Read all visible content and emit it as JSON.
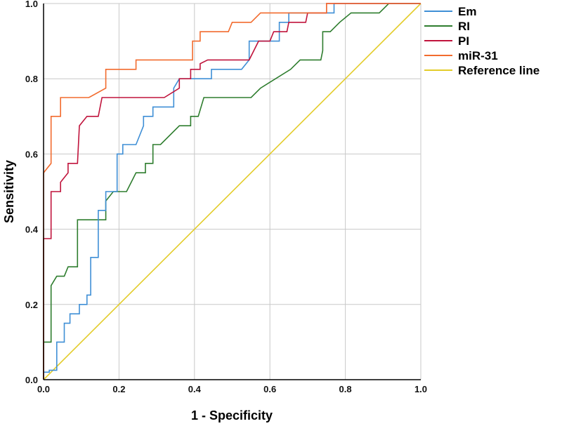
{
  "chart_data": {
    "type": "line",
    "title": "",
    "xlabel": "1 - Specificity",
    "ylabel": "Sensitivity",
    "xlim": [
      0,
      1
    ],
    "ylim": [
      0,
      1
    ],
    "grid": true,
    "legend_position": "top-right",
    "x_ticks": [
      "0.0",
      "0.2",
      "0.4",
      "0.6",
      "0.8",
      "1.0"
    ],
    "y_ticks": [
      "0.0",
      "0.2",
      "0.4",
      "0.6",
      "0.8",
      "1.0"
    ],
    "series": [
      {
        "name": "Em",
        "color": "#3f8fd6",
        "points": [
          [
            0,
            0
          ],
          [
            0,
            0.02
          ],
          [
            0.015,
            0.02
          ],
          [
            0.015,
            0.025
          ],
          [
            0.035,
            0.025
          ],
          [
            0.035,
            0.1
          ],
          [
            0.055,
            0.1
          ],
          [
            0.055,
            0.15
          ],
          [
            0.07,
            0.15
          ],
          [
            0.07,
            0.175
          ],
          [
            0.095,
            0.175
          ],
          [
            0.095,
            0.2
          ],
          [
            0.115,
            0.2
          ],
          [
            0.115,
            0.225
          ],
          [
            0.125,
            0.225
          ],
          [
            0.125,
            0.325
          ],
          [
            0.145,
            0.325
          ],
          [
            0.145,
            0.45
          ],
          [
            0.165,
            0.45
          ],
          [
            0.165,
            0.5
          ],
          [
            0.195,
            0.5
          ],
          [
            0.195,
            0.6
          ],
          [
            0.21,
            0.6
          ],
          [
            0.21,
            0.625
          ],
          [
            0.245,
            0.625
          ],
          [
            0.265,
            0.675
          ],
          [
            0.265,
            0.7
          ],
          [
            0.29,
            0.7
          ],
          [
            0.29,
            0.725
          ],
          [
            0.31,
            0.725
          ],
          [
            0.345,
            0.725
          ],
          [
            0.345,
            0.775
          ],
          [
            0.36,
            0.8
          ],
          [
            0.41,
            0.8
          ],
          [
            0.425,
            0.8
          ],
          [
            0.445,
            0.8
          ],
          [
            0.445,
            0.825
          ],
          [
            0.525,
            0.825
          ],
          [
            0.545,
            0.85
          ],
          [
            0.545,
            0.9
          ],
          [
            0.565,
            0.9
          ],
          [
            0.625,
            0.9
          ],
          [
            0.625,
            0.95
          ],
          [
            0.65,
            0.95
          ],
          [
            0.65,
            0.975
          ],
          [
            0.75,
            0.975
          ],
          [
            0.77,
            0.975
          ],
          [
            0.77,
            1.0
          ],
          [
            1.0,
            1.0
          ]
        ]
      },
      {
        "name": "RI",
        "color": "#2e7d2e",
        "points": [
          [
            0,
            0
          ],
          [
            0,
            0.1
          ],
          [
            0.02,
            0.1
          ],
          [
            0.02,
            0.25
          ],
          [
            0.035,
            0.275
          ],
          [
            0.055,
            0.275
          ],
          [
            0.065,
            0.3
          ],
          [
            0.09,
            0.3
          ],
          [
            0.09,
            0.425
          ],
          [
            0.15,
            0.425
          ],
          [
            0.165,
            0.425
          ],
          [
            0.165,
            0.475
          ],
          [
            0.185,
            0.5
          ],
          [
            0.22,
            0.5
          ],
          [
            0.245,
            0.55
          ],
          [
            0.27,
            0.55
          ],
          [
            0.27,
            0.575
          ],
          [
            0.29,
            0.575
          ],
          [
            0.29,
            0.625
          ],
          [
            0.31,
            0.625
          ],
          [
            0.36,
            0.675
          ],
          [
            0.39,
            0.675
          ],
          [
            0.39,
            0.7
          ],
          [
            0.41,
            0.7
          ],
          [
            0.425,
            0.75
          ],
          [
            0.55,
            0.75
          ],
          [
            0.575,
            0.775
          ],
          [
            0.655,
            0.825
          ],
          [
            0.68,
            0.85
          ],
          [
            0.735,
            0.85
          ],
          [
            0.74,
            0.875
          ],
          [
            0.74,
            0.925
          ],
          [
            0.76,
            0.925
          ],
          [
            0.785,
            0.95
          ],
          [
            0.815,
            0.975
          ],
          [
            0.89,
            0.975
          ],
          [
            0.915,
            1.0
          ],
          [
            1.0,
            1.0
          ]
        ]
      },
      {
        "name": "PI",
        "color": "#c0143c",
        "points": [
          [
            0,
            0
          ],
          [
            0,
            0.375
          ],
          [
            0.02,
            0.375
          ],
          [
            0.02,
            0.5
          ],
          [
            0.045,
            0.5
          ],
          [
            0.045,
            0.525
          ],
          [
            0.065,
            0.55
          ],
          [
            0.065,
            0.575
          ],
          [
            0.09,
            0.575
          ],
          [
            0.095,
            0.675
          ],
          [
            0.115,
            0.7
          ],
          [
            0.145,
            0.7
          ],
          [
            0.155,
            0.75
          ],
          [
            0.32,
            0.75
          ],
          [
            0.36,
            0.775
          ],
          [
            0.36,
            0.8
          ],
          [
            0.39,
            0.8
          ],
          [
            0.39,
            0.825
          ],
          [
            0.415,
            0.825
          ],
          [
            0.415,
            0.84
          ],
          [
            0.435,
            0.85
          ],
          [
            0.545,
            0.85
          ],
          [
            0.57,
            0.9
          ],
          [
            0.6,
            0.9
          ],
          [
            0.61,
            0.925
          ],
          [
            0.645,
            0.925
          ],
          [
            0.65,
            0.95
          ],
          [
            0.695,
            0.95
          ],
          [
            0.7,
            0.975
          ],
          [
            0.75,
            0.975
          ],
          [
            0.75,
            1.0
          ],
          [
            0.82,
            1.0
          ],
          [
            1.0,
            1.0
          ]
        ]
      },
      {
        "name": "miR-31",
        "color": "#f26b2e",
        "points": [
          [
            0,
            0
          ],
          [
            0,
            0.55
          ],
          [
            0.02,
            0.575
          ],
          [
            0.02,
            0.7
          ],
          [
            0.045,
            0.7
          ],
          [
            0.045,
            0.75
          ],
          [
            0.12,
            0.75
          ],
          [
            0.165,
            0.775
          ],
          [
            0.165,
            0.825
          ],
          [
            0.245,
            0.825
          ],
          [
            0.245,
            0.85
          ],
          [
            0.395,
            0.85
          ],
          [
            0.395,
            0.9
          ],
          [
            0.415,
            0.9
          ],
          [
            0.415,
            0.925
          ],
          [
            0.49,
            0.925
          ],
          [
            0.5,
            0.95
          ],
          [
            0.55,
            0.95
          ],
          [
            0.575,
            0.975
          ],
          [
            0.75,
            0.975
          ],
          [
            0.75,
            1.0
          ],
          [
            1.0,
            1.0
          ]
        ]
      },
      {
        "name": "Reference line",
        "color": "#e3cc2a",
        "points": [
          [
            0,
            0
          ],
          [
            1,
            1
          ]
        ]
      }
    ]
  }
}
